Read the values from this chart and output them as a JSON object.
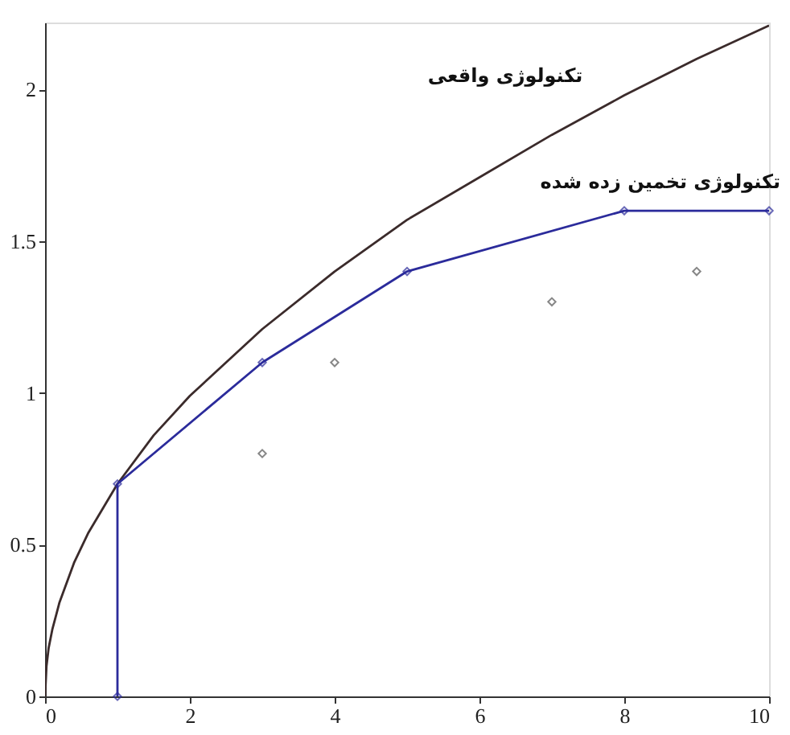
{
  "chart_data": {
    "type": "line",
    "xlim": [
      0,
      10
    ],
    "xticks": [
      0,
      2,
      4,
      6,
      8,
      10
    ],
    "ylim": [
      0,
      2.22
    ],
    "yticks": [
      0,
      0.5,
      1,
      1.5,
      2
    ],
    "grid": false,
    "series": [
      {
        "color": "#3b2b2b",
        "marker": "none",
        "x": [
          0,
          0.02,
          0.05,
          0.1,
          0.2,
          0.4,
          0.6,
          1,
          1.5,
          2,
          3,
          4,
          5,
          6,
          7,
          8,
          9,
          10
        ],
        "values": [
          0,
          0.1,
          0.16,
          0.22,
          0.31,
          0.44,
          0.54,
          0.7,
          0.86,
          0.99,
          1.21,
          1.4,
          1.57,
          1.71,
          1.85,
          1.98,
          2.1,
          2.21
        ]
      },
      {
        "type": "line",
        "color": "#2b2b9b",
        "marker": "diamond",
        "x": [
          1,
          1,
          3,
          5,
          8,
          10
        ],
        "values": [
          0,
          0.7,
          1.1,
          1.4,
          1.6,
          1.6
        ]
      },
      {
        "type": "scatter",
        "color": "#555555",
        "marker": "diamond",
        "x": [
          3,
          4,
          7,
          9
        ],
        "values": [
          0.8,
          1.1,
          1.3,
          1.4
        ]
      }
    ],
    "annotations": [
      "تکنولوژی واقعی",
      "تکنولوژی تخمین زده شده"
    ]
  }
}
